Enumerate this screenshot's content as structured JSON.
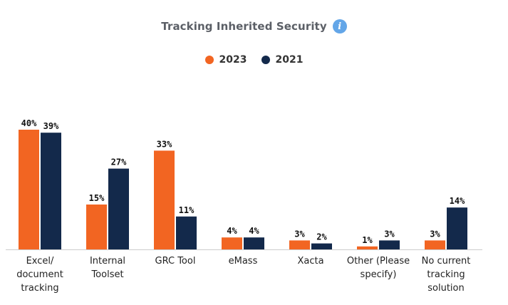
{
  "header": {
    "title": "Tracking Inherited Security",
    "info_icon": "info-icon"
  },
  "colors": {
    "series_2023": "#f26522",
    "series_2021": "#13294b",
    "info": "#63a6e8",
    "axis": "#cccccc"
  },
  "chart_data": {
    "type": "bar",
    "title": "Tracking Inherited Security",
    "xlabel": "",
    "ylabel": "",
    "ylim": [
      0,
      45
    ],
    "grid": false,
    "legend_position": "top-center",
    "categories": [
      [
        "Excel/",
        "document",
        "tracking"
      ],
      [
        "Internal",
        "Toolset"
      ],
      [
        "GRC Tool"
      ],
      [
        "eMass"
      ],
      [
        "Xacta"
      ],
      [
        "Other (Please",
        "specify)"
      ],
      [
        "No current",
        "tracking",
        "solution"
      ]
    ],
    "series": [
      {
        "name": "2023",
        "color": "#f26522",
        "values": [
          40,
          15,
          33,
          4,
          3,
          1,
          3
        ],
        "labels": [
          "40%",
          "15%",
          "33%",
          "4%",
          "3%",
          "1%",
          "3%"
        ]
      },
      {
        "name": "2021",
        "color": "#13294b",
        "values": [
          39,
          27,
          11,
          4,
          2,
          3,
          14
        ],
        "labels": [
          "39%",
          "27%",
          "11%",
          "4%",
          "2%",
          "3%",
          "14%"
        ]
      }
    ]
  }
}
